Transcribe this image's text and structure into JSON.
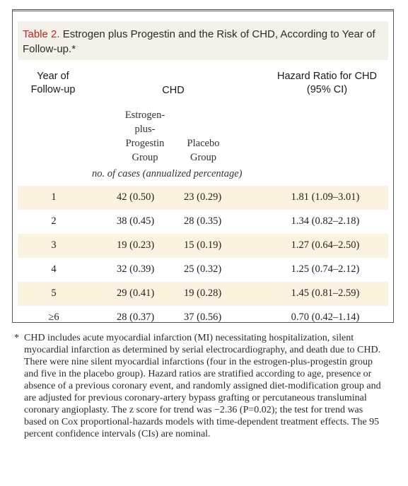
{
  "table": {
    "label": "Table 2.",
    "title": "Estrogen plus Progestin and the Risk of CHD, According to Year of Follow-up.*",
    "header": {
      "year_line1": "Year of",
      "year_line2": "Follow-up",
      "chd": "CHD",
      "hr_line1": "Hazard Ratio for CHD",
      "hr_line2": "(95% CI)",
      "ep_line1": "Estrogen-",
      "ep_line2": "plus-",
      "ep_line3": "Progestin",
      "ep_line4": "Group",
      "pl_line1": "Placebo",
      "pl_line2": "Group",
      "unit": "no. of cases (annualized percentage)"
    },
    "rows": [
      {
        "year": "1",
        "ep": "42 (0.50)",
        "placebo": "23 (0.29)",
        "hr": "1.81 (1.09–3.01)"
      },
      {
        "year": "2",
        "ep": "38 (0.45)",
        "placebo": "28 (0.35)",
        "hr": "1.34 (0.82–2.18)"
      },
      {
        "year": "3",
        "ep": "19 (0.23)",
        "placebo": "15 (0.19)",
        "hr": "1.27 (0.64–2.50)"
      },
      {
        "year": "4",
        "ep": "32 (0.39)",
        "placebo": "25 (0.32)",
        "hr": "1.25 (0.74–2.12)"
      },
      {
        "year": "5",
        "ep": "29 (0.41)",
        "placebo": "19 (0.28)",
        "hr": "1.45 (0.81–2.59)"
      },
      {
        "year": "≥6",
        "ep": "28 (0.37)",
        "placebo": "37 (0.56)",
        "hr": "0.70 (0.42–1.14)"
      }
    ],
    "footnote_mark": "*",
    "footnote": "CHD includes acute myocardial infarction (MI) necessitating hospitalization, silent myocardial infarction as determined by serial electrocardiography, and death due to CHD. There were nine silent myocardial infarctions (four in the estrogen-plus-progestin group and five in the placebo group). Hazard ratios are stratified according to age, presence or absence of a previous coronary event, and randomly assigned diet-modification group and are adjusted for previous coronary-artery bypass grafting or percutaneous transluminal coronary angioplasty. The z score for trend was −2.36 (P=0.02); the test for trend was based on Cox proportional-hazards models with time-dependent treatment effects. The 95 percent confidence intervals (CIs) are nominal."
  },
  "colors": {
    "title_label": "#c8201e",
    "title_background": "#f3f1ea",
    "row_shade": "#fbf3e0"
  }
}
